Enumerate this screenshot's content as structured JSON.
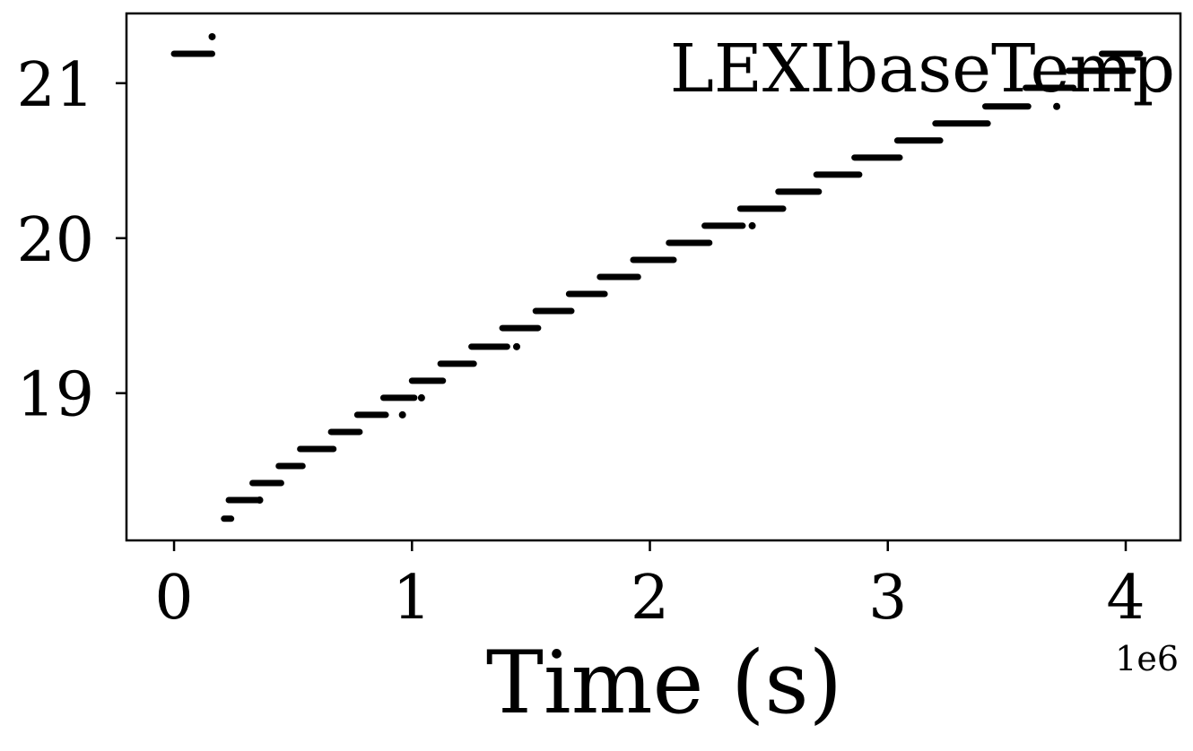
{
  "chart_data": {
    "type": "scatter",
    "title": "",
    "legend": {
      "label": "LEXIbaseTemp",
      "placement": "top-right"
    },
    "xlabel": "Time (s)",
    "x_offset_text": "1e6",
    "ylabel": "",
    "xlim": [
      -200000,
      4230000
    ],
    "ylim": [
      18.05,
      21.45
    ],
    "x_ticks": [
      0,
      1000000,
      2000000,
      3000000,
      4000000
    ],
    "x_tick_labels": [
      "0",
      "1",
      "2",
      "3",
      "4"
    ],
    "y_ticks": [
      19,
      20,
      21
    ],
    "y_tick_labels": [
      "19",
      "20",
      "21"
    ],
    "grid": false,
    "marker_color": "#000000",
    "series": [
      {
        "segments": [
          {
            "x": [
              0,
              160000
            ],
            "y": 21.19
          },
          {
            "x": [
              210000,
              240000
            ],
            "y": 18.19
          },
          {
            "x": [
              230000,
              360000
            ],
            "y": 18.31
          },
          {
            "x": [
              330000,
              450000
            ],
            "y": 18.42
          },
          {
            "x": [
              440000,
              540000
            ],
            "y": 18.53
          },
          {
            "x": [
              530000,
              670000
            ],
            "y": 18.64
          },
          {
            "x": [
              660000,
              780000
            ],
            "y": 18.75
          },
          {
            "x": [
              770000,
              890000
            ],
            "y": 18.86
          },
          {
            "x": [
              880000,
              1010000
            ],
            "y": 18.97
          },
          {
            "x": [
              1000000,
              1130000
            ],
            "y": 19.08
          },
          {
            "x": [
              1120000,
              1260000
            ],
            "y": 19.19
          },
          {
            "x": [
              1250000,
              1400000
            ],
            "y": 19.3
          },
          {
            "x": [
              1380000,
              1530000
            ],
            "y": 19.42
          },
          {
            "x": [
              1520000,
              1670000
            ],
            "y": 19.53
          },
          {
            "x": [
              1660000,
              1810000
            ],
            "y": 19.64
          },
          {
            "x": [
              1790000,
              1950000
            ],
            "y": 19.75
          },
          {
            "x": [
              1930000,
              2100000
            ],
            "y": 19.86
          },
          {
            "x": [
              2080000,
              2250000
            ],
            "y": 19.97
          },
          {
            "x": [
              2230000,
              2390000
            ],
            "y": 20.08
          },
          {
            "x": [
              2380000,
              2560000
            ],
            "y": 20.19
          },
          {
            "x": [
              2540000,
              2710000
            ],
            "y": 20.3
          },
          {
            "x": [
              2700000,
              2880000
            ],
            "y": 20.41
          },
          {
            "x": [
              2860000,
              3050000
            ],
            "y": 20.52
          },
          {
            "x": [
              3040000,
              3220000
            ],
            "y": 20.63
          },
          {
            "x": [
              3200000,
              3420000
            ],
            "y": 20.74
          },
          {
            "x": [
              3410000,
              3590000
            ],
            "y": 20.85
          },
          {
            "x": [
              3580000,
              3780000
            ],
            "y": 20.97
          },
          {
            "x": [
              3760000,
              4030000
            ],
            "y": 21.08
          },
          {
            "x": [
              3900000,
              4060000
            ],
            "y": 21.19
          }
        ],
        "points": [
          {
            "x": 160000,
            "y": 21.3
          },
          {
            "x": 360000,
            "y": 18.31
          },
          {
            "x": 960000,
            "y": 18.86
          },
          {
            "x": 1040000,
            "y": 18.97
          },
          {
            "x": 1440000,
            "y": 19.3
          },
          {
            "x": 2430000,
            "y": 20.08
          },
          {
            "x": 3710000,
            "y": 20.85
          }
        ]
      }
    ]
  }
}
